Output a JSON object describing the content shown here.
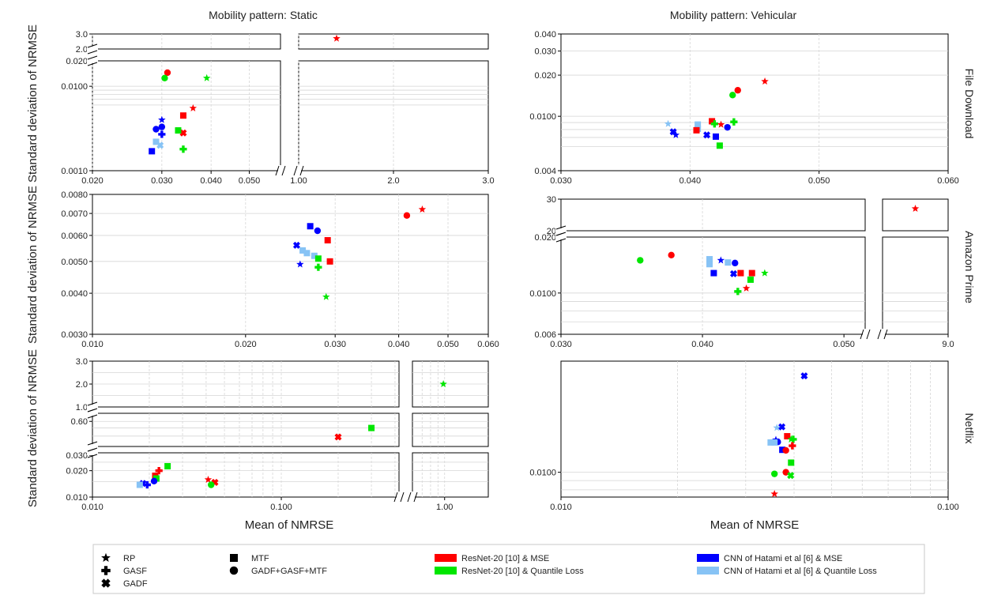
{
  "figure": {
    "column_titles": [
      "Mobility pattern: Static",
      "Mobility pattern: Vehicular"
    ],
    "row_labels": [
      "File Download",
      "Amazon Prime",
      "Netflix"
    ],
    "y_label": "Standard deviation of NRMSE",
    "x_label": "Mean of NMRSE"
  },
  "legend": {
    "markers": [
      {
        "label": "RP",
        "marker": "star"
      },
      {
        "label": "GASF",
        "marker": "plus"
      },
      {
        "label": "GADF",
        "marker": "x"
      },
      {
        "label": "MTF",
        "marker": "square"
      },
      {
        "label": "GADF+GASF+MTF",
        "marker": "circle"
      }
    ],
    "models": [
      {
        "label": "ResNet-20 [10] & MSE",
        "color": "#ff0000"
      },
      {
        "label": "ResNet-20 [10] & Quantile Loss",
        "color": "#00e600"
      },
      {
        "label": "CNN of Hatami et al [6] & MSE",
        "color": "#0000ff"
      },
      {
        "label": "CNN of Hatami et al [6] & Quantile Loss",
        "color": "#87c3f5"
      }
    ]
  },
  "colors": {
    "R": "#ff0000",
    "G": "#00e600",
    "B": "#0000ff",
    "L": "#87c3f5"
  },
  "chart_data": [
    {
      "type": "scatter",
      "panel": "Static - File Download",
      "x_scale": "log",
      "y_scale": "log",
      "xlim": [
        0.02,
        3.0
      ],
      "ylim": [
        0.001,
        3.0
      ],
      "x_ticks": [
        "0.020",
        "0.030",
        "0.040",
        "0.050",
        "1.00",
        "2.0",
        "3.0"
      ],
      "y_ticks": [
        "0.0010",
        "0.0100",
        "0.020",
        "2.0",
        "3.0"
      ],
      "points": [
        {
          "x": 1.4,
          "y": 2.7,
          "marker": "star",
          "color": "R"
        },
        {
          "x": 0.031,
          "y": 0.0145,
          "marker": "circle",
          "color": "R"
        },
        {
          "x": 0.0305,
          "y": 0.0125,
          "marker": "circle",
          "color": "G"
        },
        {
          "x": 0.039,
          "y": 0.0125,
          "marker": "star",
          "color": "G"
        },
        {
          "x": 0.036,
          "y": 0.0055,
          "marker": "star",
          "color": "R"
        },
        {
          "x": 0.034,
          "y": 0.0045,
          "marker": "square",
          "color": "R"
        },
        {
          "x": 0.034,
          "y": 0.0028,
          "marker": "x",
          "color": "R"
        },
        {
          "x": 0.033,
          "y": 0.003,
          "marker": "square",
          "color": "G"
        },
        {
          "x": 0.034,
          "y": 0.0018,
          "marker": "plus",
          "color": "G"
        },
        {
          "x": 0.03,
          "y": 0.004,
          "marker": "star",
          "color": "B"
        },
        {
          "x": 0.03,
          "y": 0.0033,
          "marker": "circle",
          "color": "B"
        },
        {
          "x": 0.029,
          "y": 0.0031,
          "marker": "circle",
          "color": "B"
        },
        {
          "x": 0.03,
          "y": 0.0027,
          "marker": "plus",
          "color": "B"
        },
        {
          "x": 0.029,
          "y": 0.0022,
          "marker": "square",
          "color": "L"
        },
        {
          "x": 0.0297,
          "y": 0.002,
          "marker": "x",
          "color": "L"
        },
        {
          "x": 0.0283,
          "y": 0.0017,
          "marker": "square",
          "color": "B"
        }
      ]
    },
    {
      "type": "scatter",
      "panel": "Vehicular - File Download",
      "x_scale": "linear",
      "y_scale": "log",
      "xlim": [
        0.03,
        0.06
      ],
      "ylim": [
        0.004,
        0.04
      ],
      "x_ticks": [
        "0.030",
        "0.040",
        "0.050",
        "0.060"
      ],
      "y_ticks": [
        "0.004",
        "0.0100",
        "0.020",
        "0.030",
        "0.040"
      ],
      "points": [
        {
          "x": 0.0458,
          "y": 0.018,
          "marker": "star",
          "color": "R"
        },
        {
          "x": 0.0437,
          "y": 0.0155,
          "marker": "circle",
          "color": "R"
        },
        {
          "x": 0.0433,
          "y": 0.0143,
          "marker": "circle",
          "color": "G"
        },
        {
          "x": 0.0383,
          "y": 0.0088,
          "marker": "star",
          "color": "L"
        },
        {
          "x": 0.0387,
          "y": 0.0077,
          "marker": "x",
          "color": "B"
        },
        {
          "x": 0.0389,
          "y": 0.0073,
          "marker": "star",
          "color": "B"
        },
        {
          "x": 0.0406,
          "y": 0.0087,
          "marker": "square",
          "color": "L"
        },
        {
          "x": 0.0406,
          "y": 0.0081,
          "marker": "square",
          "color": "L"
        },
        {
          "x": 0.0405,
          "y": 0.0079,
          "marker": "square",
          "color": "R"
        },
        {
          "x": 0.0417,
          "y": 0.0092,
          "marker": "square",
          "color": "R"
        },
        {
          "x": 0.0419,
          "y": 0.0088,
          "marker": "plus",
          "color": "G"
        },
        {
          "x": 0.0424,
          "y": 0.0087,
          "marker": "star",
          "color": "R"
        },
        {
          "x": 0.0434,
          "y": 0.0091,
          "marker": "plus",
          "color": "G"
        },
        {
          "x": 0.0429,
          "y": 0.0083,
          "marker": "circle",
          "color": "B"
        },
        {
          "x": 0.0413,
          "y": 0.0073,
          "marker": "x",
          "color": "B"
        },
        {
          "x": 0.042,
          "y": 0.0071,
          "marker": "square",
          "color": "B"
        },
        {
          "x": 0.0423,
          "y": 0.0061,
          "marker": "square",
          "color": "G"
        }
      ]
    },
    {
      "type": "scatter",
      "panel": "Static - Amazon Prime",
      "x_scale": "log",
      "y_scale": "log",
      "xlim": [
        0.01,
        0.06
      ],
      "ylim": [
        0.003,
        0.008
      ],
      "x_ticks": [
        "0.010",
        "0.020",
        "0.030",
        "0.040",
        "0.050",
        "0.060"
      ],
      "y_ticks": [
        "0.0030",
        "0.0040",
        "0.0050",
        "0.0060",
        "0.0070",
        "0.0080"
      ],
      "points": [
        {
          "x": 0.0445,
          "y": 0.0072,
          "marker": "star",
          "color": "R"
        },
        {
          "x": 0.0415,
          "y": 0.0069,
          "marker": "circle",
          "color": "R"
        },
        {
          "x": 0.0268,
          "y": 0.0064,
          "marker": "square",
          "color": "B"
        },
        {
          "x": 0.0277,
          "y": 0.0062,
          "marker": "circle",
          "color": "B"
        },
        {
          "x": 0.029,
          "y": 0.0058,
          "marker": "square",
          "color": "R"
        },
        {
          "x": 0.0252,
          "y": 0.0056,
          "marker": "x",
          "color": "B"
        },
        {
          "x": 0.0259,
          "y": 0.0054,
          "marker": "square",
          "color": "L"
        },
        {
          "x": 0.0264,
          "y": 0.0053,
          "marker": "square",
          "color": "L"
        },
        {
          "x": 0.0273,
          "y": 0.0052,
          "marker": "square",
          "color": "L"
        },
        {
          "x": 0.0278,
          "y": 0.0051,
          "marker": "square",
          "color": "G"
        },
        {
          "x": 0.0293,
          "y": 0.005,
          "marker": "square",
          "color": "R"
        },
        {
          "x": 0.0256,
          "y": 0.0049,
          "marker": "star",
          "color": "B"
        },
        {
          "x": 0.0278,
          "y": 0.0048,
          "marker": "plus",
          "color": "G"
        },
        {
          "x": 0.0288,
          "y": 0.0039,
          "marker": "star",
          "color": "G"
        }
      ]
    },
    {
      "type": "scatter",
      "panel": "Vehicular - Amazon Prime",
      "x_scale": "linear",
      "y_scale": "log",
      "xlim": [
        0.03,
        9.0
      ],
      "ylim": [
        0.006,
        30
      ],
      "x_ticks": [
        "0.030",
        "0.040",
        "0.050",
        "9.0"
      ],
      "y_ticks": [
        "0.006",
        "0.0100",
        "0.020",
        "20",
        "30"
      ],
      "points": [
        {
          "x": 8.55,
          "y": 27,
          "marker": "star",
          "color": "R"
        },
        {
          "x": 0.0378,
          "y": 0.016,
          "marker": "circle",
          "color": "R"
        },
        {
          "x": 0.0356,
          "y": 0.015,
          "marker": "circle",
          "color": "G"
        },
        {
          "x": 0.0405,
          "y": 0.0152,
          "marker": "square",
          "color": "L"
        },
        {
          "x": 0.0405,
          "y": 0.0143,
          "marker": "square",
          "color": "L"
        },
        {
          "x": 0.0413,
          "y": 0.015,
          "marker": "star",
          "color": "B"
        },
        {
          "x": 0.0418,
          "y": 0.0146,
          "marker": "square",
          "color": "L"
        },
        {
          "x": 0.0423,
          "y": 0.0145,
          "marker": "circle",
          "color": "B"
        },
        {
          "x": 0.0408,
          "y": 0.0128,
          "marker": "square",
          "color": "B"
        },
        {
          "x": 0.0422,
          "y": 0.0127,
          "marker": "x",
          "color": "B"
        },
        {
          "x": 0.0427,
          "y": 0.0128,
          "marker": "square",
          "color": "R"
        },
        {
          "x": 0.0435,
          "y": 0.0128,
          "marker": "square",
          "color": "R"
        },
        {
          "x": 0.0444,
          "y": 0.0128,
          "marker": "star",
          "color": "G"
        },
        {
          "x": 0.0434,
          "y": 0.0118,
          "marker": "square",
          "color": "G"
        },
        {
          "x": 0.0431,
          "y": 0.0106,
          "marker": "star",
          "color": "R"
        },
        {
          "x": 0.0425,
          "y": 0.0102,
          "marker": "plus",
          "color": "G"
        }
      ]
    },
    {
      "type": "scatter",
      "panel": "Static - Netflix",
      "x_scale": "log",
      "y_scale": "log",
      "xlim": [
        0.01,
        2.0
      ],
      "ylim": [
        0.01,
        3.0
      ],
      "x_ticks": [
        "0.010",
        "0.100",
        "1.00"
      ],
      "y_ticks": [
        "0.010",
        "0.020",
        "0.030",
        "0.60",
        "1.0",
        "2.0",
        "3.0"
      ],
      "points": [
        {
          "x": 0.98,
          "y": 2.0,
          "marker": "star",
          "color": "G"
        },
        {
          "x": 0.3,
          "y": 0.5,
          "marker": "square",
          "color": "G"
        },
        {
          "x": 0.2,
          "y": 0.39,
          "marker": "x",
          "color": "R"
        },
        {
          "x": 0.025,
          "y": 0.0225,
          "marker": "square",
          "color": "G"
        },
        {
          "x": 0.0225,
          "y": 0.02,
          "marker": "plus",
          "color": "R"
        },
        {
          "x": 0.0215,
          "y": 0.0175,
          "marker": "square",
          "color": "R"
        },
        {
          "x": 0.0218,
          "y": 0.0163,
          "marker": "square",
          "color": "G"
        },
        {
          "x": 0.0212,
          "y": 0.0152,
          "marker": "circle",
          "color": "B"
        },
        {
          "x": 0.0195,
          "y": 0.0138,
          "marker": "plus",
          "color": "B"
        },
        {
          "x": 0.0185,
          "y": 0.0143,
          "marker": "x",
          "color": "B"
        },
        {
          "x": 0.0178,
          "y": 0.0138,
          "marker": "square",
          "color": "L"
        },
        {
          "x": 0.041,
          "y": 0.0158,
          "marker": "star",
          "color": "R"
        },
        {
          "x": 0.0445,
          "y": 0.0147,
          "marker": "x",
          "color": "R"
        },
        {
          "x": 0.0425,
          "y": 0.0138,
          "marker": "circle",
          "color": "G"
        }
      ]
    },
    {
      "type": "scatter",
      "panel": "Vehicular - Netflix",
      "x_scale": "log",
      "y_scale": "log",
      "xlim": [
        0.01,
        0.1
      ],
      "ylim": [
        0.0073,
        0.041
      ],
      "x_ticks": [
        "0.010",
        "0.100"
      ],
      "y_ticks": [
        "0.0100"
      ],
      "points": [
        {
          "x": 0.0425,
          "y": 0.034,
          "marker": "x",
          "color": "B"
        },
        {
          "x": 0.0372,
          "y": 0.0178,
          "marker": "x",
          "color": "B"
        },
        {
          "x": 0.0361,
          "y": 0.0176,
          "marker": "star",
          "color": "L"
        },
        {
          "x": 0.0384,
          "y": 0.0158,
          "marker": "square",
          "color": "R"
        },
        {
          "x": 0.0393,
          "y": 0.0152,
          "marker": "star",
          "color": "G"
        },
        {
          "x": 0.0398,
          "y": 0.0152,
          "marker": "plus",
          "color": "G"
        },
        {
          "x": 0.0359,
          "y": 0.0151,
          "marker": "star",
          "color": "B"
        },
        {
          "x": 0.0363,
          "y": 0.0147,
          "marker": "circle",
          "color": "B"
        },
        {
          "x": 0.0348,
          "y": 0.0146,
          "marker": "square",
          "color": "L"
        },
        {
          "x": 0.0356,
          "y": 0.0146,
          "marker": "square",
          "color": "L"
        },
        {
          "x": 0.0396,
          "y": 0.014,
          "marker": "plus",
          "color": "R"
        },
        {
          "x": 0.0373,
          "y": 0.0133,
          "marker": "square",
          "color": "B"
        },
        {
          "x": 0.0381,
          "y": 0.0132,
          "marker": "circle",
          "color": "R"
        },
        {
          "x": 0.0393,
          "y": 0.0113,
          "marker": "square",
          "color": "G"
        },
        {
          "x": 0.0381,
          "y": 0.01,
          "marker": "circle",
          "color": "R"
        },
        {
          "x": 0.0356,
          "y": 0.0098,
          "marker": "circle",
          "color": "G"
        },
        {
          "x": 0.0392,
          "y": 0.0096,
          "marker": "x",
          "color": "G"
        },
        {
          "x": 0.0356,
          "y": 0.0076,
          "marker": "star",
          "color": "R"
        }
      ]
    }
  ]
}
